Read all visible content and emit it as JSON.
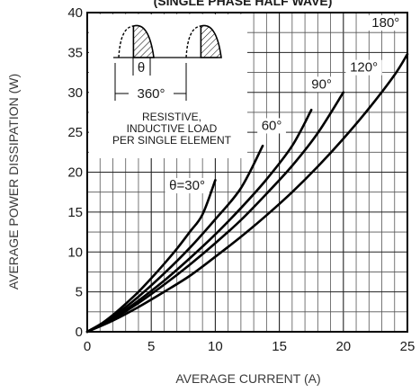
{
  "chart_data": {
    "type": "line",
    "title": "(SINGLE PHASE HALF WAVE)",
    "xlabel": "AVERAGE CURRENT (A)",
    "ylabel": "AVERAGE POWER DISSIPATION (W)",
    "xlim": [
      0,
      25
    ],
    "ylim": [
      0,
      40
    ],
    "x_ticks": [
      0,
      5,
      10,
      15,
      20,
      25
    ],
    "y_ticks": [
      0,
      5,
      10,
      15,
      20,
      25,
      30,
      35,
      40
    ],
    "grid": true,
    "series": [
      {
        "name": "θ=30°",
        "points": [
          [
            0,
            0
          ],
          [
            1,
            0.9
          ],
          [
            2,
            2.1
          ],
          [
            3,
            3.5
          ],
          [
            4,
            5
          ],
          [
            5,
            6.7
          ],
          [
            6,
            8.5
          ],
          [
            7,
            10.4
          ],
          [
            8,
            12.5
          ],
          [
            9,
            14.7
          ],
          [
            10,
            19
          ]
        ]
      },
      {
        "name": "60°",
        "points": [
          [
            0,
            0
          ],
          [
            2,
            1.9
          ],
          [
            4,
            4.4
          ],
          [
            6,
            7.3
          ],
          [
            8,
            10.5
          ],
          [
            10,
            14.1
          ],
          [
            12,
            18
          ],
          [
            13.7,
            23.3
          ]
        ]
      },
      {
        "name": "90°",
        "points": [
          [
            0,
            0
          ],
          [
            2,
            1.7
          ],
          [
            4,
            3.9
          ],
          [
            6,
            6.4
          ],
          [
            8,
            9.2
          ],
          [
            10,
            12.2
          ],
          [
            12,
            15.5
          ],
          [
            14,
            19.1
          ],
          [
            16,
            23.3
          ],
          [
            17.5,
            27.8
          ]
        ]
      },
      {
        "name": "120°",
        "points": [
          [
            0,
            0
          ],
          [
            2,
            1.6
          ],
          [
            4,
            3.6
          ],
          [
            6,
            5.9
          ],
          [
            8,
            8.4
          ],
          [
            10,
            11.1
          ],
          [
            12,
            14
          ],
          [
            14,
            17.3
          ],
          [
            16,
            20.8
          ],
          [
            18,
            24.9
          ],
          [
            20,
            30
          ]
        ]
      },
      {
        "name": "180°",
        "points": [
          [
            0,
            0
          ],
          [
            2,
            1.4
          ],
          [
            4,
            3.1
          ],
          [
            6,
            5
          ],
          [
            8,
            7
          ],
          [
            10,
            9.4
          ],
          [
            12,
            11.9
          ],
          [
            14,
            14.6
          ],
          [
            16,
            17.5
          ],
          [
            18,
            20.7
          ],
          [
            20,
            24.2
          ],
          [
            22,
            28
          ],
          [
            24,
            32.2
          ],
          [
            25,
            34.8
          ]
        ]
      }
    ],
    "curve_labels": [
      {
        "text": "θ=30°",
        "x": 7.8,
        "y": 17.8
      },
      {
        "text": "60°",
        "x": 14.4,
        "y": 25.3
      },
      {
        "text": "90°",
        "x": 18.3,
        "y": 30.5
      },
      {
        "text": "120°",
        "x": 21.6,
        "y": 32.6
      },
      {
        "text": "180°",
        "x": 23.3,
        "y": 38.2
      }
    ],
    "inset": {
      "theta_label": "θ",
      "period_label": "360°",
      "note_lines": [
        "RESISTIVE,",
        "INDUCTIVE LOAD",
        "PER SINGLE ELEMENT"
      ]
    }
  }
}
